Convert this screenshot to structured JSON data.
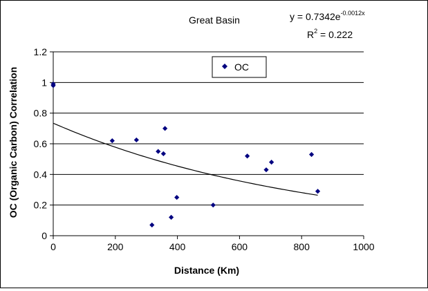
{
  "chart_data": {
    "type": "scatter",
    "title": "Great Basin",
    "xlabel": "Distance (Km)",
    "ylabel": "OC (Organic Carbon) Correlation",
    "xlim": [
      0,
      1000
    ],
    "ylim": [
      0,
      1.2
    ],
    "x_ticks": [
      0,
      200,
      400,
      600,
      800,
      1000
    ],
    "y_ticks": [
      0,
      0.2,
      0.4,
      0.6,
      0.8,
      1,
      1.2
    ],
    "x_tick_labels": [
      "0",
      "200",
      "400",
      "600",
      "800",
      "1000"
    ],
    "y_tick_labels": [
      "0",
      "0.2",
      "0.4",
      "0.6",
      "0.8",
      "1",
      "1.2"
    ],
    "grid": "horizontal",
    "legend": {
      "position": "top-center",
      "entries": [
        "OC"
      ]
    },
    "series": [
      {
        "name": "OC",
        "color": "#000080",
        "marker": "diamond",
        "x": [
          0,
          0,
          190,
          268,
          338,
          355,
          360,
          318,
          380,
          398,
          515,
          625,
          686,
          703,
          832,
          852
        ],
        "y": [
          0.99,
          0.98,
          0.62,
          0.625,
          0.55,
          0.535,
          0.7,
          0.07,
          0.12,
          0.25,
          0.2,
          0.52,
          0.43,
          0.48,
          0.53,
          0.29
        ]
      }
    ],
    "trendline": {
      "type": "exponential",
      "a": 0.7342,
      "b": -0.0012,
      "x_range": [
        0,
        852
      ],
      "color": "#000000",
      "equation_prefix": "y = 0.7342e",
      "equation_exponent": "-0.0012x",
      "r2_prefix": "R",
      "r2_exponent": "2",
      "r2_suffix": " = 0.222"
    }
  }
}
